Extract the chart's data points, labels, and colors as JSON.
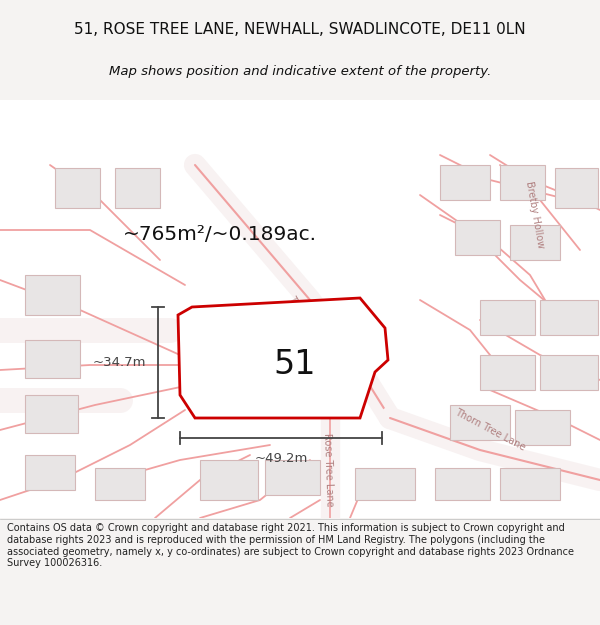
{
  "title_line1": "51, ROSE TREE LANE, NEWHALL, SWADLINCOTE, DE11 0LN",
  "title_line2": "Map shows position and indicative extent of the property.",
  "area_text": "~765m²/~0.189ac.",
  "label_51": "51",
  "dim_width": "~49.2m",
  "dim_height": "~34.7m",
  "footer_text": "Contains OS data © Crown copyright and database right 2021. This information is subject to Crown copyright and database rights 2023 and is reproduced with the permission of HM Land Registry. The polygons (including the associated geometry, namely x, y co-ordinates) are subject to Crown copyright and database rights 2023 Ordnance Survey 100026316.",
  "map_bg": "#ffffff",
  "title_bg": "#f5f3f2",
  "footer_bg": "#ffffff",
  "plot_outline_color": "#cc0000",
  "plot_fill_color": "#ffffff",
  "building_fill": "#e8e5e5",
  "building_outline": "#d4b8b8",
  "road_line_color": "#f0a0a0",
  "road_block_color": "#f8f0f0",
  "dim_color": "#444444",
  "text_color": "#111111",
  "road_label_color": "#b08080",
  "area_text_color": "#111111"
}
